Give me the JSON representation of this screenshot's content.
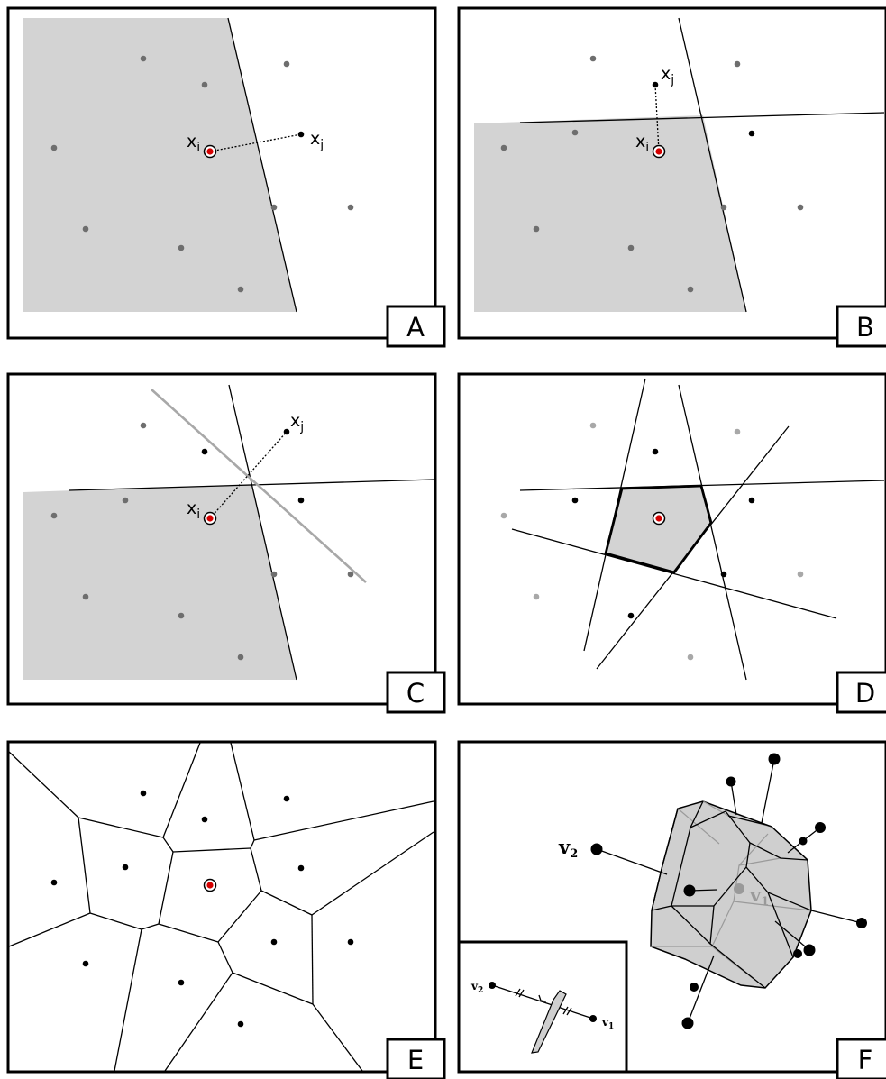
{
  "panels": {
    "a": {
      "tag": "A",
      "xi": "x",
      "xi_sub": "i",
      "xj": "x",
      "xj_sub": "j"
    },
    "b": {
      "tag": "B",
      "xi": "x",
      "xi_sub": "i",
      "xj": "x",
      "xj_sub": "j"
    },
    "c": {
      "tag": "C",
      "xi": "x",
      "xi_sub": "i",
      "xj": "x",
      "xj_sub": "j"
    },
    "d": {
      "tag": "D"
    },
    "e": {
      "tag": "E"
    },
    "f": {
      "tag": "F",
      "v1": "v",
      "v1_sub": "1",
      "v2": "v",
      "v2_sub": "2",
      "inset_v1": "v",
      "inset_v1_sub": "1",
      "inset_v2": "v",
      "inset_v2_sub": "2"
    }
  },
  "colors": {
    "shade": "#d3d3d3",
    "highlight_point": "#d40000",
    "grey_point": "#6e6e6e",
    "light_point": "#a8a8a8"
  }
}
